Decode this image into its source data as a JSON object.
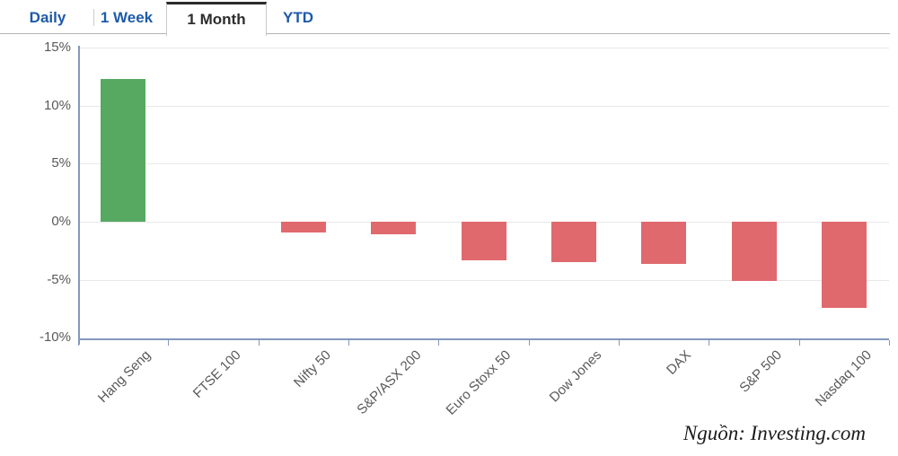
{
  "tabs": [
    {
      "label": "Daily",
      "active": false
    },
    {
      "label": "1 Week",
      "active": false
    },
    {
      "label": "1 Month",
      "active": true
    },
    {
      "label": "YTD",
      "active": false
    }
  ],
  "source": "Nguồn: Investing.com",
  "colors": {
    "tab_blue": "#1e5aa8",
    "tab_active_text": "#2d2d2d",
    "tab_active_top": "#2b2b2b",
    "tab_border": "#c9c9c9",
    "tab_divider": "#b3b3b3",
    "positive_bar": "#57a962",
    "negative_bar": "#e0696e",
    "axis_line": "#8398bc",
    "gridline": "#e8e8e8",
    "tick_text": "#595959"
  },
  "chart_data": {
    "type": "bar",
    "title": "",
    "xlabel": "",
    "ylabel": "",
    "unit": "%",
    "categories": [
      "Hang Seng",
      "FTSE 100",
      "Nifty 50",
      "S&P/ASX 200",
      "Euro Stoxx 50",
      "Dow Jones",
      "DAX",
      "S&P 500",
      "Nasdaq 100"
    ],
    "values": [
      12.3,
      0.0,
      -0.9,
      -1.1,
      -3.3,
      -3.5,
      -3.6,
      -5.1,
      -7.4
    ],
    "ylim": [
      -10,
      15
    ],
    "yticks": [
      {
        "label": "15%",
        "value": 15
      },
      {
        "label": "10%",
        "value": 10
      },
      {
        "label": "5%",
        "value": 5
      },
      {
        "label": "0%",
        "value": 0
      },
      {
        "label": "-5%",
        "value": -5
      },
      {
        "label": "-10%",
        "value": -10
      }
    ],
    "grid": true,
    "legend": false,
    "bar_color_positive": "#57a962",
    "bar_color_negative": "#e0696e"
  }
}
